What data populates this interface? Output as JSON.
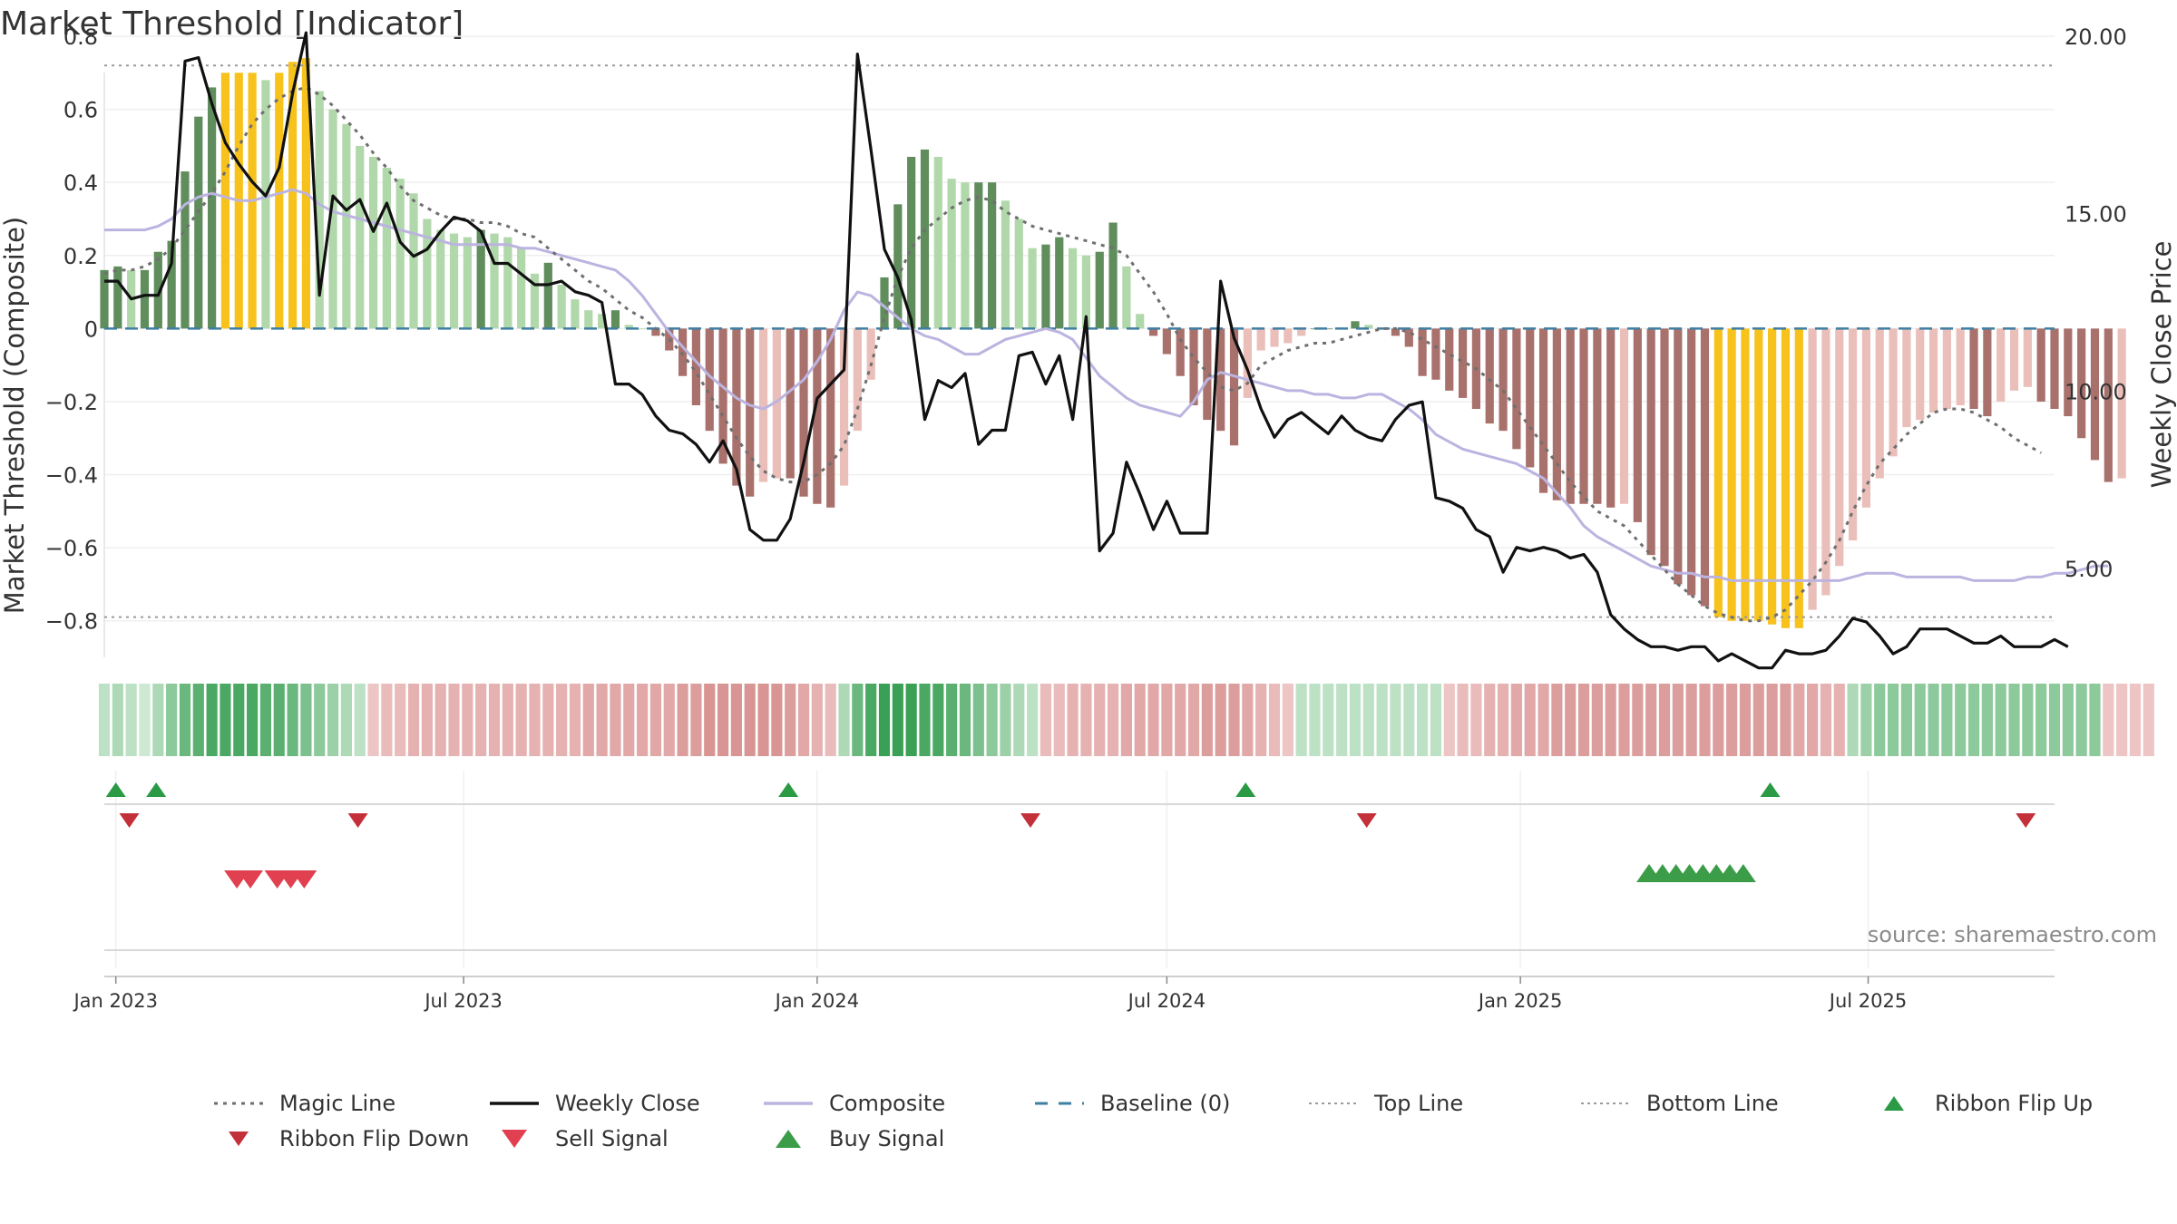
{
  "chart_data": {
    "type": "bar",
    "title": "Market Threshold [Indicator]",
    "ylabel_left": "Market Threshold (Composite)",
    "ylabel_right": "Weekly Close Price",
    "source_note": "source: sharemaestro.com",
    "ylim_left": [
      -0.9,
      0.8
    ],
    "ylim_right": [
      2.5,
      20.0
    ],
    "yticks_left": [
      0.8,
      0.6,
      0.4,
      0.2,
      0,
      -0.2,
      -0.4,
      -0.6,
      -0.8
    ],
    "ytick_labels_left": [
      "0.8",
      "0.6",
      "0.4",
      "0.2",
      "0",
      "−0.2",
      "−0.4",
      "−0.6",
      "−0.8"
    ],
    "yticks_right": [
      20,
      15,
      10,
      5
    ],
    "ytick_labels_right": [
      "20.00",
      "15.00",
      "10.00",
      "5.00"
    ],
    "x_range": [
      "2022-12-26",
      "2025-10-06"
    ],
    "x_ticks": [
      {
        "date": "2023-01-01",
        "label": "Jan 2023"
      },
      {
        "date": "2023-07-01",
        "label": "Jul 2023"
      },
      {
        "date": "2024-01-01",
        "label": "Jan 2024"
      },
      {
        "date": "2024-07-01",
        "label": "Jul 2024"
      },
      {
        "date": "2025-01-01",
        "label": "Jan 2025"
      },
      {
        "date": "2025-07-01",
        "label": "Jul 2025"
      }
    ],
    "top_line": 0.72,
    "bottom_line": -0.79,
    "baseline": 0,
    "start_week": "2022-12-26",
    "composite_bars": [
      0.16,
      0.17,
      0.16,
      0.16,
      0.21,
      0.24,
      0.43,
      0.58,
      0.66,
      0.7,
      0.7,
      0.7,
      0.68,
      0.7,
      0.73,
      0.74,
      0.65,
      0.6,
      0.56,
      0.5,
      0.47,
      0.44,
      0.41,
      0.37,
      0.3,
      0.27,
      0.26,
      0.25,
      0.27,
      0.26,
      0.25,
      0.22,
      0.15,
      0.18,
      0.12,
      0.08,
      0.05,
      0.04,
      0.05,
      0.01,
      0,
      -0.02,
      -0.06,
      -0.13,
      -0.21,
      -0.28,
      -0.37,
      -0.43,
      -0.46,
      -0.42,
      -0.41,
      -0.41,
      -0.46,
      -0.48,
      -0.49,
      -0.43,
      -0.28,
      -0.14,
      0.14,
      0.34,
      0.47,
      0.49,
      0.47,
      0.41,
      0.4,
      0.4,
      0.4,
      0.35,
      0.3,
      0.22,
      0.23,
      0.25,
      0.22,
      0.2,
      0.21,
      0.29,
      0.17,
      0.04,
      -0.02,
      -0.07,
      -0.13,
      -0.21,
      -0.25,
      -0.28,
      -0.32,
      -0.19,
      -0.06,
      -0.05,
      -0.04,
      -0.02,
      0,
      0,
      0,
      0.02,
      0.01,
      0,
      -0.02,
      -0.05,
      -0.13,
      -0.14,
      -0.17,
      -0.19,
      -0.22,
      -0.26,
      -0.28,
      -0.33,
      -0.38,
      -0.45,
      -0.47,
      -0.48,
      -0.48,
      -0.48,
      -0.49,
      -0.48,
      -0.53,
      -0.62,
      -0.65,
      -0.7,
      -0.73,
      -0.76,
      -0.79,
      -0.8,
      -0.8,
      -0.8,
      -0.81,
      -0.82,
      -0.82,
      -0.77,
      -0.73,
      -0.65,
      -0.58,
      -0.49,
      -0.41,
      -0.35,
      -0.27,
      -0.25,
      -0.23,
      -0.22,
      -0.21,
      -0.22,
      -0.24,
      -0.2,
      -0.17,
      -0.16,
      -0.2,
      -0.22,
      -0.24,
      -0.3,
      -0.36,
      -0.42,
      -0.41
    ],
    "series": [
      {
        "name": "Magic Line",
        "values": [
          0.15,
          0.16,
          0.16,
          0.17,
          0.19,
          0.22,
          0.27,
          0.32,
          0.37,
          0.43,
          0.5,
          0.56,
          0.6,
          0.63,
          0.65,
          0.66,
          0.64,
          0.61,
          0.57,
          0.53,
          0.48,
          0.44,
          0.39,
          0.35,
          0.33,
          0.31,
          0.3,
          0.3,
          0.29,
          0.29,
          0.28,
          0.26,
          0.25,
          0.22,
          0.19,
          0.16,
          0.13,
          0.11,
          0.08,
          0.05,
          0.03,
          0,
          -0.03,
          -0.07,
          -0.12,
          -0.18,
          -0.24,
          -0.3,
          -0.35,
          -0.39,
          -0.41,
          -0.42,
          -0.42,
          -0.4,
          -0.37,
          -0.32,
          -0.22,
          -0.1,
          0.03,
          0.14,
          0.22,
          0.27,
          0.3,
          0.33,
          0.35,
          0.36,
          0.35,
          0.32,
          0.3,
          0.28,
          0.27,
          0.26,
          0.25,
          0.24,
          0.23,
          0.22,
          0.2,
          0.15,
          0.1,
          0.04,
          -0.03,
          -0.08,
          -0.12,
          -0.16,
          -0.17,
          -0.15,
          -0.1,
          -0.08,
          -0.06,
          -0.05,
          -0.04,
          -0.04,
          -0.03,
          -0.02,
          -0.01,
          0,
          0,
          -0.01,
          -0.03,
          -0.05,
          -0.07,
          -0.09,
          -0.11,
          -0.14,
          -0.17,
          -0.22,
          -0.27,
          -0.32,
          -0.37,
          -0.42,
          -0.46,
          -0.5,
          -0.52,
          -0.54,
          -0.58,
          -0.62,
          -0.66,
          -0.7,
          -0.73,
          -0.76,
          -0.78,
          -0.79,
          -0.8,
          -0.8,
          -0.79,
          -0.77,
          -0.73,
          -0.69,
          -0.64,
          -0.58,
          -0.5,
          -0.43,
          -0.37,
          -0.33,
          -0.29,
          -0.26,
          -0.23,
          -0.22,
          -0.22,
          -0.23,
          -0.25,
          -0.27,
          -0.3,
          -0.32,
          -0.34
        ]
      },
      {
        "name": "Weekly Close",
        "values": [
          13.1,
          13.1,
          12.6,
          12.7,
          12.7,
          13.6,
          19.3,
          19.4,
          18.1,
          17.0,
          16.4,
          15.9,
          15.5,
          16.3,
          18.4,
          20.1,
          12.7,
          15.5,
          15.1,
          15.4,
          14.5,
          15.3,
          14.2,
          13.8,
          14.0,
          14.5,
          14.9,
          14.8,
          14.5,
          13.6,
          13.6,
          13.3,
          13.0,
          13.0,
          13.1,
          12.8,
          12.7,
          12.5,
          10.2,
          10.2,
          9.9,
          9.3,
          8.9,
          8.8,
          8.5,
          8.0,
          8.6,
          7.8,
          6.1,
          5.8,
          5.8,
          6.4,
          8.0,
          9.8,
          10.2,
          10.6,
          19.5,
          16.8,
          14.0,
          13.2,
          12.0,
          9.2,
          10.3,
          10.1,
          10.5,
          8.5,
          8.9,
          8.9,
          11.0,
          11.1,
          10.2,
          11.0,
          9.2,
          12.1,
          5.5,
          6.0,
          8.0,
          7.1,
          6.1,
          6.9,
          6.0,
          6.0,
          6.0,
          13.1,
          11.5,
          10.6,
          9.5,
          8.7,
          9.2,
          9.4,
          9.1,
          8.8,
          9.3,
          8.9,
          8.7,
          8.6,
          9.2,
          9.6,
          9.7,
          7.0,
          6.9,
          6.7,
          6.1,
          5.9,
          4.9,
          5.6,
          5.5,
          5.6,
          5.5,
          5.3,
          5.4,
          4.9,
          3.7,
          3.3,
          3.0,
          2.8,
          2.8,
          2.7,
          2.8,
          2.8,
          2.4,
          2.6,
          2.4,
          2.2,
          2.2,
          2.7,
          2.6,
          2.6,
          2.7,
          3.1,
          3.6,
          3.5,
          3.1,
          2.6,
          2.8,
          3.3,
          3.3,
          3.3,
          3.1,
          2.9,
          2.9,
          3.1,
          2.8,
          2.8,
          2.8,
          3.0,
          2.8
        ]
      },
      {
        "name": "Composite",
        "values": [
          0.27,
          0.27,
          0.27,
          0.27,
          0.28,
          0.3,
          0.34,
          0.36,
          0.37,
          0.36,
          0.35,
          0.35,
          0.36,
          0.37,
          0.38,
          0.37,
          0.34,
          0.32,
          0.31,
          0.3,
          0.29,
          0.28,
          0.27,
          0.26,
          0.25,
          0.24,
          0.23,
          0.23,
          0.23,
          0.23,
          0.23,
          0.22,
          0.22,
          0.21,
          0.2,
          0.19,
          0.18,
          0.17,
          0.16,
          0.13,
          0.09,
          0.04,
          -0.01,
          -0.05,
          -0.09,
          -0.13,
          -0.16,
          -0.19,
          -0.21,
          -0.22,
          -0.2,
          -0.17,
          -0.14,
          -0.09,
          -0.03,
          0.05,
          0.1,
          0.09,
          0.06,
          0.03,
          0.0,
          -0.02,
          -0.03,
          -0.05,
          -0.07,
          -0.07,
          -0.05,
          -0.03,
          -0.02,
          -0.01,
          0.0,
          -0.01,
          -0.03,
          -0.08,
          -0.13,
          -0.16,
          -0.19,
          -0.21,
          -0.22,
          -0.23,
          -0.24,
          -0.2,
          -0.14,
          -0.12,
          -0.13,
          -0.14,
          -0.15,
          -0.16,
          -0.17,
          -0.17,
          -0.18,
          -0.18,
          -0.19,
          -0.19,
          -0.18,
          -0.18,
          -0.2,
          -0.22,
          -0.25,
          -0.29,
          -0.31,
          -0.33,
          -0.34,
          -0.35,
          -0.36,
          -0.37,
          -0.39,
          -0.41,
          -0.45,
          -0.49,
          -0.54,
          -0.57,
          -0.59,
          -0.61,
          -0.63,
          -0.65,
          -0.66,
          -0.67,
          -0.67,
          -0.68,
          -0.68,
          -0.69,
          -0.69,
          -0.69,
          -0.69,
          -0.69,
          -0.69,
          -0.69,
          -0.69,
          -0.69,
          -0.68,
          -0.67,
          -0.67,
          -0.67,
          -0.68,
          -0.68,
          -0.68,
          -0.68,
          -0.68,
          -0.69,
          -0.69,
          -0.69,
          -0.69,
          -0.68,
          -0.68,
          -0.67,
          -0.67,
          -0.66,
          -0.65,
          -0.65
        ]
      },
      {
        "name": "Baseline (0)"
      },
      {
        "name": "Top Line"
      },
      {
        "name": "Bottom Line"
      }
    ],
    "ribbon_values": [
      0.2,
      0.3,
      0.2,
      0.1,
      0.3,
      0.5,
      0.7,
      0.8,
      0.9,
      0.9,
      0.9,
      0.9,
      0.8,
      0.8,
      0.7,
      0.6,
      0.5,
      0.4,
      0.3,
      0.2,
      -0.2,
      -0.3,
      -0.3,
      -0.4,
      -0.4,
      -0.4,
      -0.4,
      -0.4,
      -0.4,
      -0.4,
      -0.4,
      -0.4,
      -0.4,
      -0.4,
      -0.4,
      -0.4,
      -0.5,
      -0.5,
      -0.5,
      -0.5,
      -0.5,
      -0.5,
      -0.5,
      -0.6,
      -0.6,
      -0.7,
      -0.7,
      -0.7,
      -0.7,
      -0.7,
      -0.7,
      -0.6,
      -0.5,
      -0.4,
      -0.3,
      0.3,
      0.7,
      0.9,
      1.0,
      1.0,
      1.0,
      0.9,
      0.9,
      0.8,
      0.7,
      0.6,
      0.5,
      0.4,
      0.3,
      0.2,
      -0.3,
      -0.3,
      -0.4,
      -0.4,
      -0.4,
      -0.4,
      -0.5,
      -0.5,
      -0.5,
      -0.5,
      -0.5,
      -0.5,
      -0.6,
      -0.6,
      -0.6,
      -0.5,
      -0.4,
      -0.3,
      -0.2,
      0.2,
      0.2,
      0.2,
      0.2,
      0.2,
      0.2,
      0.2,
      0.2,
      0.2,
      0.2,
      0.2,
      -0.2,
      -0.3,
      -0.3,
      -0.4,
      -0.4,
      -0.5,
      -0.5,
      -0.5,
      -0.6,
      -0.6,
      -0.6,
      -0.6,
      -0.6,
      -0.6,
      -0.6,
      -0.6,
      -0.6,
      -0.6,
      -0.6,
      -0.6,
      -0.6,
      -0.6,
      -0.6,
      -0.6,
      -0.6,
      -0.6,
      -0.5,
      -0.5,
      -0.4,
      -0.4,
      0.3,
      0.4,
      0.5,
      0.5,
      0.5,
      0.5,
      0.5,
      0.5,
      0.5,
      0.5,
      0.5,
      0.5,
      0.5,
      0.5,
      0.5,
      0.5,
      0.5,
      0.5,
      0.5,
      -0.2,
      -0.2,
      -0.2,
      -0.2
    ],
    "ribbon_flip_up": [
      "2023-01-01",
      "2023-01-22",
      "2023-12-17",
      "2024-08-11",
      "2025-05-11"
    ],
    "ribbon_flip_down": [
      "2023-01-08",
      "2023-05-07",
      "2024-04-21",
      "2024-10-13",
      "2025-09-21"
    ],
    "sell_signals": [
      "2023-03-05",
      "2023-03-12",
      "2023-03-26",
      "2023-04-02",
      "2023-04-09"
    ],
    "buy_signals": [
      "2025-03-09",
      "2025-03-16",
      "2025-03-23",
      "2025-03-30",
      "2025-04-06",
      "2025-04-13",
      "2025-04-20",
      "2025-04-27"
    ],
    "legend_placement": "bottom",
    "colors": {
      "up_dark": "#5f8d5c",
      "up_light": "#b1d8aa",
      "down_dark": "#a8716c",
      "down_light": "#eabfba",
      "extreme": "#f6c21b",
      "magic": "#6f6f6f",
      "close": "#111111",
      "composite": "#bcb4e0",
      "baseline": "#3f7fa3",
      "threshold": "#9a9a9a",
      "flip_up": "#2a9a44",
      "flip_down": "#c4303a",
      "sell": "#e0404f",
      "buy": "#3b9d48"
    },
    "legend": [
      {
        "label": "Magic Line",
        "kind": "dotted"
      },
      {
        "label": "Weekly Close",
        "kind": "solid"
      },
      {
        "label": "Composite",
        "kind": "composite"
      },
      {
        "label": "Baseline (0)",
        "kind": "dashed"
      },
      {
        "label": "Top Line",
        "kind": "thin-dotted"
      },
      {
        "label": "Bottom Line",
        "kind": "thin-dotted"
      },
      {
        "label": "Ribbon Flip Up",
        "kind": "tri-up"
      },
      {
        "label": "Ribbon Flip Down",
        "kind": "tri-down"
      },
      {
        "label": "Sell Signal",
        "kind": "tri-down-big"
      },
      {
        "label": "Buy Signal",
        "kind": "tri-up-big"
      }
    ]
  }
}
